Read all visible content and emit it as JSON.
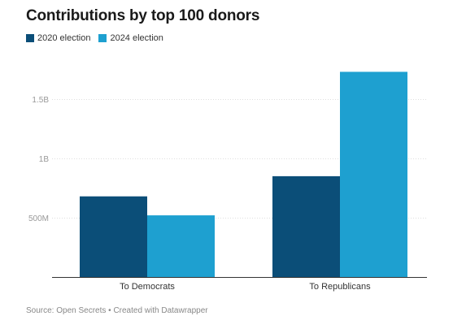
{
  "title": "Contributions by top 100 donors",
  "legend": [
    {
      "label": "2020 election",
      "color": "#0b4e78"
    },
    {
      "label": "2024 election",
      "color": "#1ea0d0"
    }
  ],
  "source": "Source: Open Secrets • Created with Datawrapper",
  "chart_data": {
    "type": "bar",
    "title": "Contributions by top 100 donors",
    "xlabel": "",
    "ylabel": "",
    "categories": [
      "To Democrats",
      "To Republicans"
    ],
    "series": [
      {
        "name": "2020 election",
        "values": [
          680000000,
          850000000
        ],
        "color": "#0b4e78"
      },
      {
        "name": "2024 election",
        "values": [
          520000000,
          1730000000
        ],
        "color": "#1ea0d0"
      }
    ],
    "ylim": [
      0,
      1800000000
    ],
    "yticks": [
      {
        "value": 500000000,
        "label": "500M"
      },
      {
        "value": 1000000000,
        "label": "1B"
      },
      {
        "value": 1500000000,
        "label": "1.5B"
      }
    ],
    "grid": true,
    "legend_position": "top-left"
  }
}
